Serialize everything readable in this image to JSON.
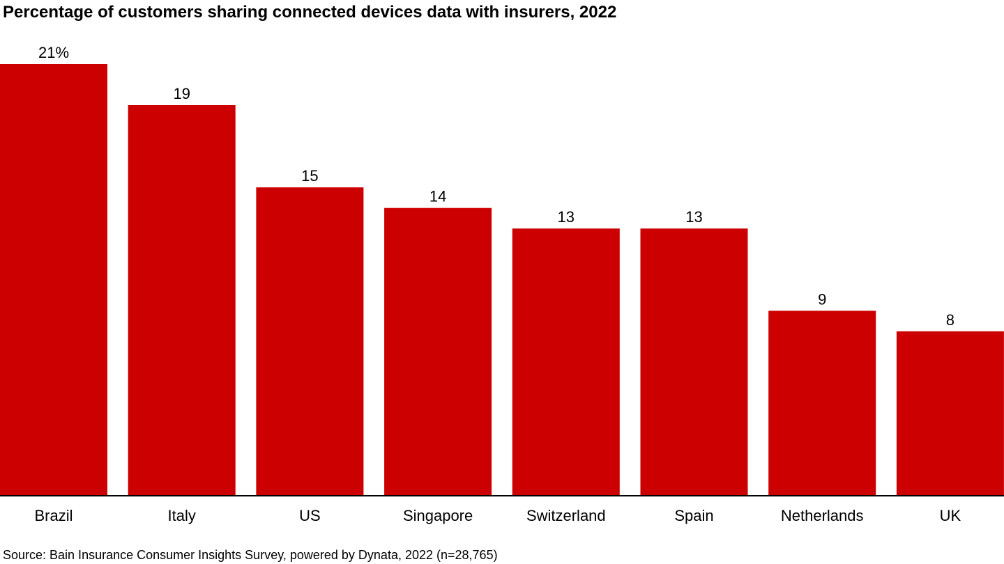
{
  "chart_data": {
    "type": "bar",
    "title": "Percentage of customers sharing connected devices data with insurers, 2022",
    "categories": [
      "Brazil",
      "Italy",
      "US",
      "Singapore",
      "Switzerland",
      "Spain",
      "Netherlands",
      "UK"
    ],
    "values": [
      21,
      19,
      15,
      14,
      13,
      13,
      9,
      8
    ],
    "value_labels": [
      "21%",
      "19",
      "15",
      "14",
      "13",
      "13",
      "9",
      "8"
    ],
    "unit": "%",
    "xlabel": "",
    "ylabel": "",
    "ylim": [
      0,
      21
    ],
    "grid": false,
    "legend": "none",
    "bar_color": "#CC0000",
    "source": "Source: Bain Insurance Consumer Insights Survey, powered by Dynata, 2022 (n=28,765)"
  }
}
